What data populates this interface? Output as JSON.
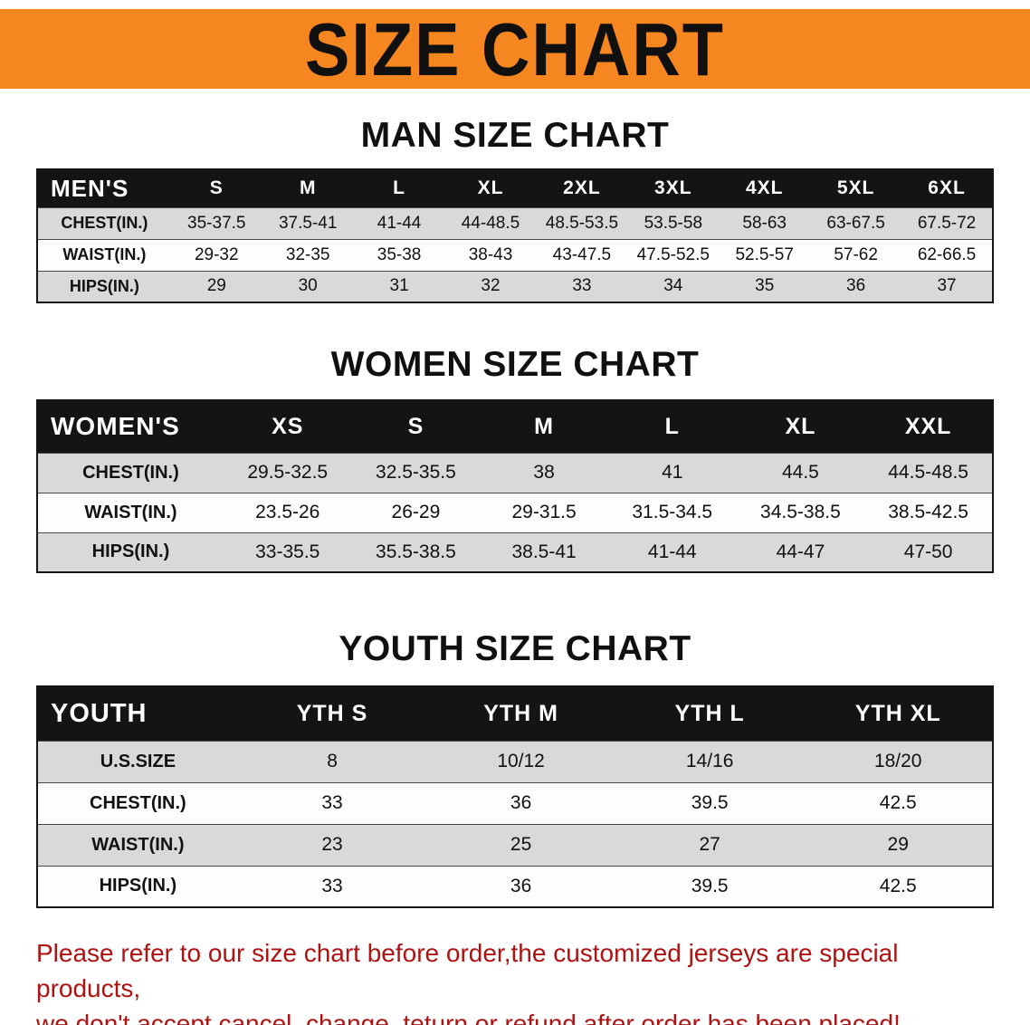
{
  "banner": {
    "title": "SIZE CHART"
  },
  "colors": {
    "banner_orange": "#f6861f",
    "table_header_black": "#141414",
    "row_stripe_gray": "#d9d9d9",
    "notice_red": "#b01212"
  },
  "sections": [
    {
      "id": "men",
      "heading": "MAN SIZE CHART",
      "table": {
        "header": [
          "MEN'S",
          "S",
          "M",
          "L",
          "XL",
          "2XL",
          "3XL",
          "4XL",
          "5XL",
          "6XL"
        ],
        "rows": [
          [
            "CHEST(IN.)",
            "35-37.5",
            "37.5-41",
            "41-44",
            "44-48.5",
            "48.5-53.5",
            "53.5-58",
            "58-63",
            "63-67.5",
            "67.5-72"
          ],
          [
            "WAIST(IN.)",
            "29-32",
            "32-35",
            "35-38",
            "38-43",
            "43-47.5",
            "47.5-52.5",
            "52.5-57",
            "57-62",
            "62-66.5"
          ],
          [
            "HIPS(IN.)",
            "29",
            "30",
            "31",
            "32",
            "33",
            "34",
            "35",
            "36",
            "37"
          ]
        ]
      }
    },
    {
      "id": "women",
      "heading": "WOMEN SIZE CHART",
      "table": {
        "header": [
          "WOMEN'S",
          "XS",
          "S",
          "M",
          "L",
          "XL",
          "XXL"
        ],
        "rows": [
          [
            "CHEST(IN.)",
            "29.5-32.5",
            "32.5-35.5",
            "38",
            "41",
            "44.5",
            "44.5-48.5"
          ],
          [
            "WAIST(IN.)",
            "23.5-26",
            "26-29",
            "29-31.5",
            "31.5-34.5",
            "34.5-38.5",
            "38.5-42.5"
          ],
          [
            "HIPS(IN.)",
            "33-35.5",
            "35.5-38.5",
            "38.5-41",
            "41-44",
            "44-47",
            "47-50"
          ]
        ]
      }
    },
    {
      "id": "youth",
      "heading": "YOUTH SIZE CHART",
      "table": {
        "header": [
          "YOUTH",
          "YTH S",
          "YTH M",
          "YTH L",
          "YTH XL"
        ],
        "rows": [
          [
            "U.S.SIZE",
            "8",
            "10/12",
            "14/16",
            "18/20"
          ],
          [
            "CHEST(IN.)",
            "33",
            "36",
            "39.5",
            "42.5"
          ],
          [
            "WAIST(IN.)",
            "23",
            "25",
            "27",
            "29"
          ],
          [
            "HIPS(IN.)",
            "33",
            "36",
            "39.5",
            "42.5"
          ]
        ]
      }
    }
  ],
  "notice": {
    "lines": [
      "Please refer to our size chart before order,the customized jerseys are special products,",
      "we don't accept cancel, change, teturn or refund after order has been placed!"
    ]
  }
}
